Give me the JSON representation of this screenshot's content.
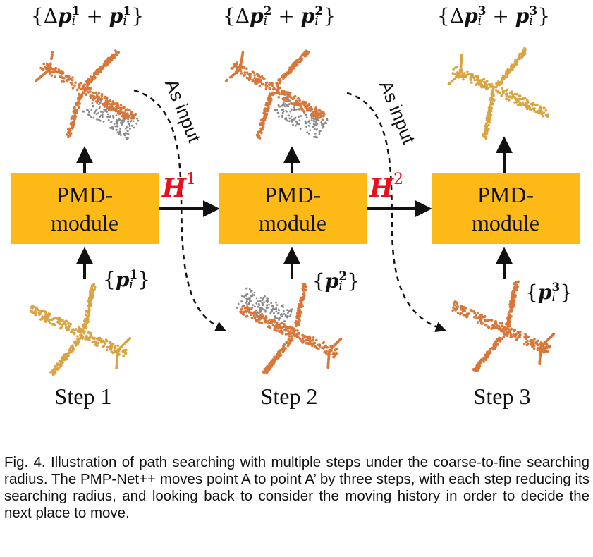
{
  "steps": [
    {
      "label": "Step 1",
      "module_line1": "PMD-",
      "module_line2": "module",
      "input_sup": "1",
      "output_sup": "1"
    },
    {
      "label": "Step 2",
      "module_line1": "PMD-",
      "module_line2": "module",
      "input_sup": "2",
      "output_sup": "2"
    },
    {
      "label": "Step 3",
      "module_line1": "PMD-",
      "module_line2": "module",
      "input_sup": "3",
      "output_sup": "3"
    }
  ],
  "math": {
    "delta": "Δ",
    "p": "p",
    "sub": "i",
    "plus": "+",
    "open": "{",
    "close": "}"
  },
  "hidden": [
    {
      "symbol": "H",
      "sup": "1"
    },
    {
      "symbol": "H",
      "sup": "2"
    }
  ],
  "as_input": "As input",
  "colors": {
    "module": "#fdb916",
    "hidden_label": "#e8121f",
    "cloud_yellow": "#d9a441",
    "cloud_orange": "#d9773a",
    "cloud_gray": "#8a8a8a"
  },
  "caption": "Fig. 4. Illustration of path searching with multiple steps under the coarse-to-fine searching radius. The PMP-Net++ moves point A to point A’ by three steps, with each step reducing its searching radius, and looking back to consider the moving history in order to decide the next place to move."
}
